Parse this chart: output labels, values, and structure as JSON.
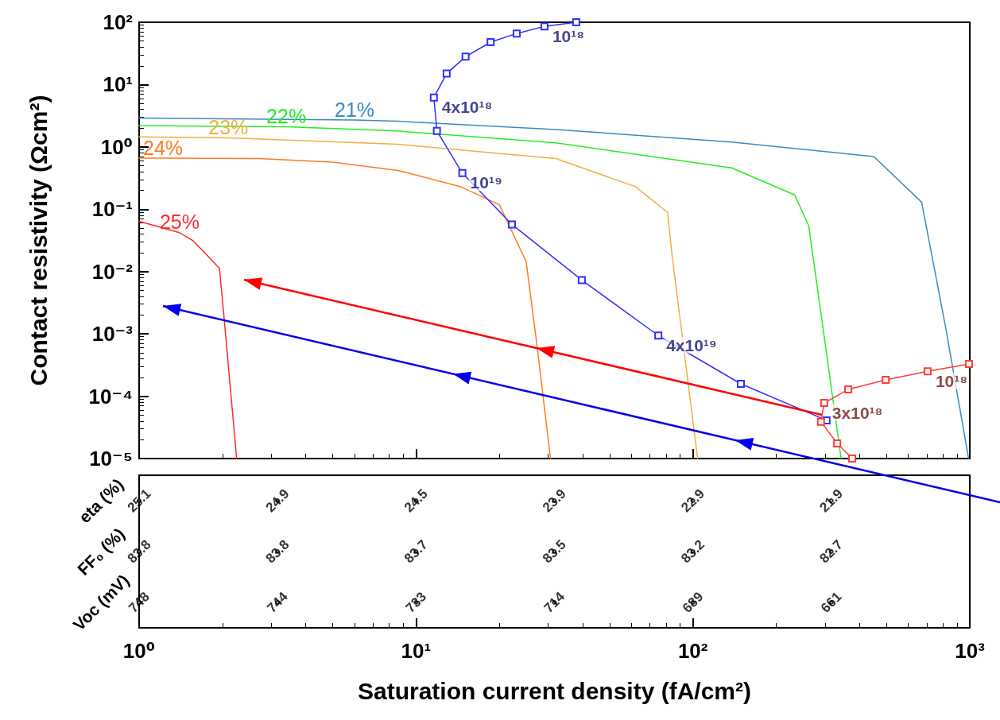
{
  "chart_data": [
    {
      "type": "line",
      "ylabel": "Contact resistivity (Ωcm²)",
      "log": "xy",
      "tick_labels": "y",
      "xlim": [
        1,
        1000
      ],
      "xticks": [
        {
          "value": 1,
          "label": null
        },
        {
          "value": 10,
          "label": null
        },
        {
          "value": 100,
          "label": null
        },
        {
          "value": 1000,
          "label": null
        }
      ],
      "ylim": [
        1e-05,
        100
      ],
      "yticks": [
        {
          "value": 1e-05,
          "label": "10⁻⁵"
        },
        {
          "value": 0.0001,
          "label": "10⁻⁴"
        },
        {
          "value": 0.001,
          "label": "10⁻³"
        },
        {
          "value": 0.01,
          "label": "10⁻²"
        },
        {
          "value": 0.1,
          "label": "10⁻¹"
        },
        {
          "value": 1,
          "label": "10⁰"
        },
        {
          "value": 10,
          "label": "10¹"
        },
        {
          "value": 100,
          "label": "10²"
        }
      ],
      "series": [
        {
          "name": "21%",
          "color": "#3a8ac4",
          "marker": "none",
          "x": [
            1,
            6,
            8.6,
            32,
            138,
            450,
            670,
            820,
            990
          ],
          "values": [
            2.9,
            2.7,
            2.58,
            1.9,
            1.2,
            0.7,
            0.13,
            0.0012,
            1e-05
          ]
        },
        {
          "name": "22%",
          "color": "#22ee22",
          "marker": "none",
          "x": [
            1,
            3.4,
            8.6,
            32,
            138,
            233,
            262,
            305,
            343
          ],
          "values": [
            2.2,
            2.1,
            1.8,
            1.16,
            0.46,
            0.17,
            0.054,
            0.00043,
            1e-05
          ]
        },
        {
          "name": "23%",
          "color": "#f0b040",
          "marker": "none",
          "x": [
            1,
            2.1,
            8.6,
            32,
            62,
            81,
            84,
            104
          ],
          "values": [
            1.45,
            1.4,
            1.1,
            0.65,
            0.23,
            0.089,
            0.019,
            1e-05
          ]
        },
        {
          "name": "24%",
          "color": "#ff7a20",
          "marker": "none",
          "x": [
            1,
            1.22,
            2.7,
            5,
            8.6,
            14.5,
            20,
            25,
            27.3,
            30.6
          ],
          "values": [
            0.66,
            0.66,
            0.65,
            0.57,
            0.42,
            0.23,
            0.118,
            0.0144,
            0.0007,
            1e-05
          ]
        },
        {
          "name": "25%",
          "color": "#ff2a2a",
          "marker": "none",
          "x": [
            1,
            1.4,
            1.57,
            1.95,
            2.03,
            2.25
          ],
          "values": [
            0.064,
            0.042,
            0.031,
            0.0113,
            0.0017,
            1e-05
          ]
        },
        {
          "color": "#3030ff",
          "marker": "square",
          "x": [
            37.9,
            29.1,
            23.1,
            18.6,
            15.1,
            12.9,
            11.6,
            11.9,
            14.7,
            22.2,
            39.7,
            75,
            149,
            304
          ],
          "values": [
            100,
            86,
            66,
            48,
            28,
            15,
            6.2,
            1.8,
            0.38,
            0.057,
            0.0073,
            0.00094,
            0.000158,
            4.1e-05
          ]
        },
        {
          "color": "#ff3a3a",
          "marker": "square",
          "x": [
            994,
            704,
            497,
            364,
            298,
            290,
            332,
            376
          ],
          "values": [
            0.00033,
            0.00025,
            0.000183,
            0.000129,
            7.8e-05,
            3.9e-05,
            1.75e-05,
            1e-05
          ]
        }
      ],
      "annotations": [
        {
          "text": "10¹⁸",
          "x": 29.1,
          "y": 86
        },
        {
          "text": "4x10¹⁸",
          "x": 11.6,
          "y": 6.2
        },
        {
          "text": "10¹⁹",
          "x": 14.7,
          "y": 0.38
        },
        {
          "text": "4x10¹⁹",
          "x": 75,
          "y": 0.00094
        },
        {
          "text": "10¹⁸",
          "x": 704,
          "y": 0.00025
        },
        {
          "text": "3x10¹⁸",
          "x": 298,
          "y": 7.8e-05
        }
      ]
    },
    {
      "type": "heatmap",
      "xlabel": "Saturation current density (fA/cm²)",
      "log": "x",
      "data_labels": true,
      "xlim": [
        1,
        1000
      ],
      "xticks": [
        {
          "value": 1,
          "label": "10⁰"
        },
        {
          "value": 10,
          "label": "10¹"
        },
        {
          "value": 100,
          "label": "10²"
        },
        {
          "value": 1000,
          "label": "10³"
        }
      ],
      "x": [
        1,
        3.16,
        10,
        31.6,
        100,
        316
      ],
      "y_categories": [
        "eta (%)",
        "FF₀ (%)",
        "Voc (mV)"
      ],
      "cells": [
        [
          25.1,
          24.9,
          24.5,
          23.9,
          22.9,
          21.9
        ],
        [
          83.8,
          83.8,
          83.7,
          83.5,
          83.2,
          82.7
        ],
        [
          748,
          744,
          733,
          714,
          689,
          661
        ]
      ]
    }
  ]
}
